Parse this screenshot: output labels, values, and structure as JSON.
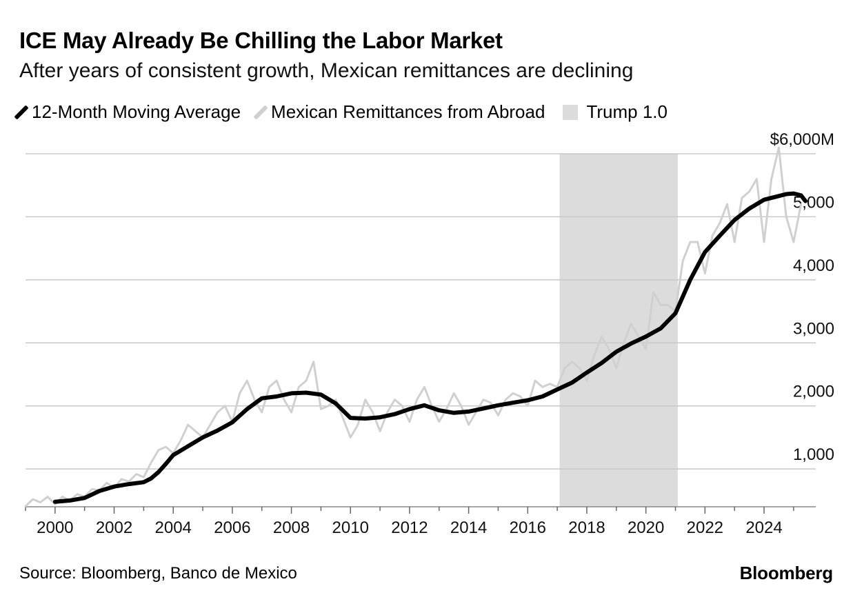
{
  "title": "ICE May Already Be Chilling the Labor Market",
  "subtitle": "After years of consistent growth, Mexican remittances are declining",
  "legend": [
    {
      "label": "12-Month Moving Average",
      "color": "#000000",
      "kind": "line"
    },
    {
      "label": "Mexican Remittances from Abroad",
      "color": "#d0d0d0",
      "kind": "line"
    },
    {
      "label": "Trump 1.0",
      "color": "#dcdcdc",
      "kind": "box"
    }
  ],
  "source": "Source: Bloomberg, Banco de Mexico",
  "brand": "Bloomberg",
  "chart_data": {
    "type": "line",
    "xlim": [
      1999,
      2025.75
    ],
    "ylim": [
      400,
      6000
    ],
    "y_ticks": [
      1000,
      2000,
      3000,
      4000,
      5000,
      6000
    ],
    "y_tick_labels": [
      "1,000",
      "2,000",
      "3,000",
      "4,000",
      "5,000",
      "$6,000M"
    ],
    "x_ticks": [
      2000,
      2002,
      2004,
      2006,
      2008,
      2010,
      2012,
      2014,
      2016,
      2018,
      2020,
      2022,
      2024
    ],
    "x_tick_labels": [
      "2000",
      "2002",
      "2004",
      "2006",
      "2008",
      "2010",
      "2012",
      "2014",
      "2016",
      "2018",
      "2020",
      "2022",
      "2024"
    ],
    "grid": "horizontal",
    "shaded_periods": [
      {
        "name": "Trump 1.0",
        "start": 2017.08,
        "end": 2021.08,
        "color": "#dcdcdc"
      }
    ],
    "series": [
      {
        "name": "Mexican Remittances from Abroad",
        "color": "#d0d0d0",
        "x": [
          1999.0,
          1999.25,
          1999.5,
          1999.75,
          2000.0,
          2000.25,
          2000.5,
          2000.75,
          2001.0,
          2001.25,
          2001.5,
          2001.75,
          2002.0,
          2002.25,
          2002.5,
          2002.75,
          2003.0,
          2003.25,
          2003.5,
          2003.75,
          2004.0,
          2004.25,
          2004.5,
          2004.75,
          2005.0,
          2005.25,
          2005.5,
          2005.75,
          2006.0,
          2006.25,
          2006.5,
          2006.75,
          2007.0,
          2007.25,
          2007.5,
          2007.75,
          2008.0,
          2008.25,
          2008.5,
          2008.75,
          2009.0,
          2009.25,
          2009.5,
          2009.75,
          2010.0,
          2010.25,
          2010.5,
          2010.75,
          2011.0,
          2011.25,
          2011.5,
          2011.75,
          2012.0,
          2012.25,
          2012.5,
          2012.75,
          2013.0,
          2013.25,
          2013.5,
          2013.75,
          2014.0,
          2014.25,
          2014.5,
          2014.75,
          2015.0,
          2015.25,
          2015.5,
          2015.75,
          2016.0,
          2016.25,
          2016.5,
          2016.75,
          2017.0,
          2017.25,
          2017.5,
          2017.75,
          2018.0,
          2018.25,
          2018.5,
          2018.75,
          2019.0,
          2019.25,
          2019.5,
          2019.75,
          2020.0,
          2020.25,
          2020.5,
          2020.75,
          2021.0,
          2021.25,
          2021.5,
          2021.75,
          2022.0,
          2022.25,
          2022.5,
          2022.75,
          2023.0,
          2023.25,
          2023.5,
          2023.75,
          2024.0,
          2024.25,
          2024.5,
          2024.75,
          2025.0,
          2025.25
        ],
        "values": [
          410,
          520,
          470,
          560,
          440,
          560,
          500,
          600,
          560,
          680,
          660,
          780,
          700,
          840,
          800,
          920,
          870,
          1100,
          1300,
          1350,
          1250,
          1450,
          1700,
          1600,
          1500,
          1700,
          1900,
          2000,
          1750,
          2200,
          2400,
          2100,
          1900,
          2300,
          2400,
          2100,
          1900,
          2300,
          2400,
          2700,
          1950,
          2000,
          2100,
          1800,
          1500,
          1700,
          2100,
          1900,
          1600,
          1900,
          2100,
          2000,
          1750,
          2100,
          2300,
          2000,
          1750,
          1950,
          2200,
          2000,
          1700,
          1900,
          2100,
          2050,
          1850,
          2100,
          2200,
          2150,
          2000,
          2400,
          2300,
          2350,
          2300,
          2600,
          2700,
          2600,
          2400,
          2800,
          3100,
          2900,
          2600,
          3000,
          3300,
          3100,
          2900,
          3800,
          3600,
          3600,
          3500,
          4300,
          4600,
          4600,
          4100,
          4700,
          4900,
          5200,
          4600,
          5300,
          5400,
          5600,
          4600,
          5600,
          6100,
          5000,
          4600,
          5200
        ]
      },
      {
        "name": "12-Month Moving Average",
        "color": "#000000",
        "x": [
          2000.0,
          2000.5,
          2001.0,
          2001.5,
          2002.0,
          2002.5,
          2003.0,
          2003.25,
          2003.5,
          2003.75,
          2004.0,
          2004.5,
          2005.0,
          2005.5,
          2006.0,
          2006.5,
          2007.0,
          2007.5,
          2008.0,
          2008.5,
          2009.0,
          2009.5,
          2010.0,
          2010.5,
          2011.0,
          2011.5,
          2012.0,
          2012.5,
          2013.0,
          2013.5,
          2014.0,
          2014.5,
          2015.0,
          2015.5,
          2016.0,
          2016.5,
          2017.0,
          2017.5,
          2018.0,
          2018.5,
          2019.0,
          2019.5,
          2020.0,
          2020.5,
          2021.0,
          2021.5,
          2022.0,
          2022.5,
          2023.0,
          2023.5,
          2024.0,
          2024.5,
          2024.75,
          2025.0,
          2025.25,
          2025.4
        ],
        "values": [
          480,
          500,
          540,
          650,
          720,
          760,
          790,
          850,
          950,
          1080,
          1220,
          1360,
          1500,
          1610,
          1740,
          1950,
          2120,
          2150,
          2200,
          2210,
          2180,
          2040,
          1810,
          1800,
          1820,
          1870,
          1950,
          2010,
          1930,
          1890,
          1910,
          1960,
          2010,
          2050,
          2090,
          2150,
          2260,
          2370,
          2530,
          2680,
          2860,
          2990,
          3100,
          3230,
          3470,
          4000,
          4440,
          4700,
          4950,
          5130,
          5270,
          5330,
          5360,
          5370,
          5340,
          5250
        ]
      }
    ]
  }
}
